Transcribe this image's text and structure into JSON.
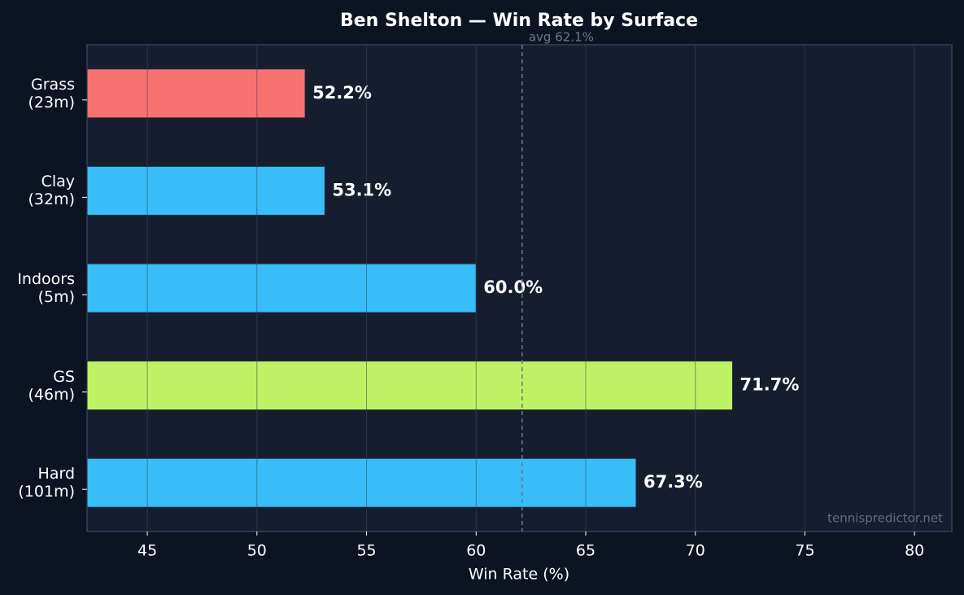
{
  "chart_data": {
    "type": "barh",
    "title": "Ben Shelton — Win Rate by Surface",
    "xlabel": "Win Rate (%)",
    "categories": [
      "Grass\n(23m)",
      "Clay\n(32m)",
      "Indoors\n(5m)",
      "GS\n(46m)",
      "Hard\n(101m)"
    ],
    "values": [
      52.2,
      53.1,
      60.0,
      71.7,
      67.3
    ],
    "value_labels": [
      "52.2%",
      "53.1%",
      "60.0%",
      "71.7%",
      "67.3%"
    ],
    "colors": [
      "#f87171",
      "#38bdf8",
      "#38bdf8",
      "#bef264",
      "#38bdf8"
    ],
    "xlim": [
      42.25,
      81.7
    ],
    "xticks": [
      45,
      50,
      55,
      60,
      65,
      70,
      75,
      80
    ],
    "grid": true,
    "reference_line": {
      "value": 62.1,
      "label": "avg 62.1%"
    },
    "watermark": "tennispredictor.net"
  }
}
